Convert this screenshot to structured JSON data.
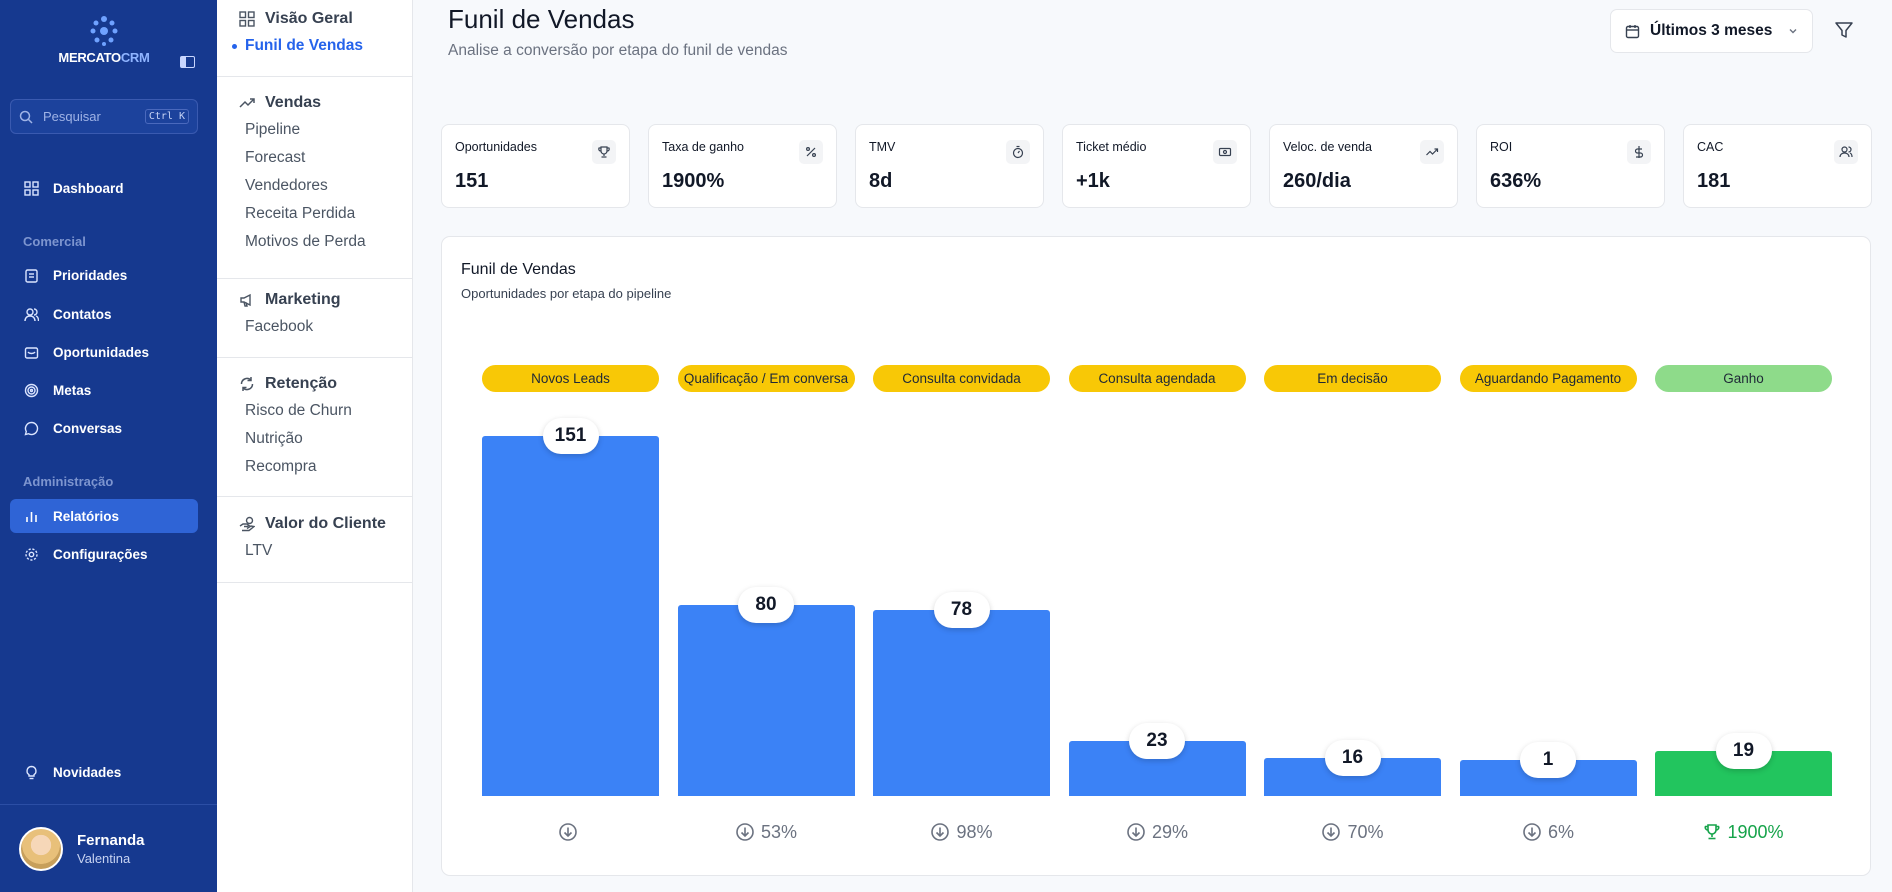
{
  "brand": {
    "logo_main": "MERCATO",
    "logo_accent": "CRM"
  },
  "search": {
    "placeholder": "Pesquisar",
    "shortcut": "Ctrl K"
  },
  "nav": {
    "dashboard": "Dashboard",
    "section_comercial": "Comercial",
    "prioridades": "Prioridades",
    "contatos": "Contatos",
    "oportunidades": "Oportunidades",
    "metas": "Metas",
    "conversas": "Conversas",
    "section_admin": "Administração",
    "relatorios": "Relatórios",
    "configuracoes": "Configurações",
    "novidades": "Novidades"
  },
  "user": {
    "first": "Fernanda",
    "last": "Valentina"
  },
  "subnav": {
    "visao_geral": {
      "title": "Visão Geral",
      "items": [
        "Funil de Vendas"
      ]
    },
    "vendas": {
      "title": "Vendas",
      "items": [
        "Pipeline",
        "Forecast",
        "Vendedores",
        "Receita Perdida",
        "Motivos de Perda"
      ]
    },
    "marketing": {
      "title": "Marketing",
      "items": [
        "Facebook"
      ]
    },
    "retencao": {
      "title": "Retenção",
      "items": [
        "Risco de Churn",
        "Nutrição",
        "Recompra"
      ]
    },
    "valor_cliente": {
      "title": "Valor do Cliente",
      "items": [
        "LTV"
      ]
    }
  },
  "header": {
    "title": "Funil de Vendas",
    "subtitle": "Analise a conversão por etapa do funil de vendas",
    "period": "Últimos 3 meses"
  },
  "kpis": [
    {
      "label": "Oportunidades",
      "value": "151",
      "icon": "trophy-icon"
    },
    {
      "label": "Taxa de ganho",
      "value": "1900%",
      "icon": "percent-icon"
    },
    {
      "label": "TMV",
      "value": "8d",
      "icon": "timer-icon"
    },
    {
      "label": "Ticket médio",
      "value": "+1k",
      "icon": "banknote-icon"
    },
    {
      "label": "Veloc. de venda",
      "value": "260/dia",
      "icon": "trending-up-icon"
    },
    {
      "label": "ROI",
      "value": "636%",
      "icon": "dollar-icon"
    },
    {
      "label": "CAC",
      "value": "181",
      "icon": "users-icon"
    }
  ],
  "funnel_card": {
    "title": "Funil de Vendas",
    "subtitle": "Oportunidades por etapa do pipeline"
  },
  "colors": {
    "bar": "#3b82f6",
    "bar_win": "#22c55e",
    "pill": "#f8c806",
    "pill_win": "#8edb8a"
  },
  "chart_data": {
    "type": "bar",
    "categories": [
      "Novos Leads",
      "Qualificação / Em conversa",
      "Consulta convidada",
      "Consulta agendada",
      "Em decisão",
      "Aguardando Pagamento",
      "Ganho"
    ],
    "values": [
      151,
      80,
      78,
      23,
      16,
      1,
      19
    ],
    "conversion_labels": [
      "",
      "53%",
      "98%",
      "29%",
      "70%",
      "6%",
      "1900%"
    ],
    "title": "Funil de Vendas",
    "subtitle": "Oportunidades por etapa do pipeline",
    "grid": false,
    "legend": "none"
  }
}
